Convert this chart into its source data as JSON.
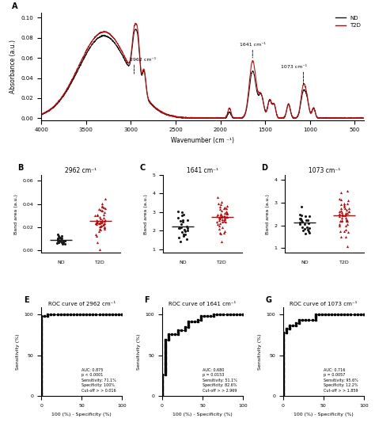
{
  "title_A": "A",
  "title_B": "B",
  "title_C": "C",
  "title_D": "D",
  "title_E": "E",
  "title_F": "F",
  "title_G": "G",
  "xlabel_A": "Wavenumber (cm ⁻¹)",
  "ylabel_A": "Absorbance (a.u.)",
  "legend_ND": "ND",
  "legend_T2D": "T2D",
  "color_ND": "#1a1a1a",
  "color_T2D": "#cc0000",
  "annotation_2962": "2962 cm⁻¹",
  "annotation_1641": "1641 cm⁻¹",
  "annotation_1073": "1073 cm⁻¹",
  "panel_B_title": "2962 cm⁻¹",
  "panel_C_title": "1641 cm⁻¹",
  "panel_D_title": "1073 cm⁻¹",
  "panel_E_title": "ROC curve of 2962 cm⁻¹",
  "panel_F_title": "ROC curve of 1641 cm⁻¹",
  "panel_G_title": "ROC curve of 1073 cm⁻¹",
  "roc_E_text": "AUC: 0.875\np < 0.0001\nSensitivity: 71.1%\nSpecificity: 100%\nCut-off > > 0.016",
  "roc_F_text": "AUC: 0.680\np = 0.0153\nSensitivity: 51.1%\nSpecificity: 82.6%\nCut-off > > 2.969",
  "roc_G_text": "AUC: 0.716\np = 0.0057\nSensitivity: 95.6%\nSpecificity: 12.2%\nCut-off > > 1.859",
  "background_color": "#ffffff"
}
